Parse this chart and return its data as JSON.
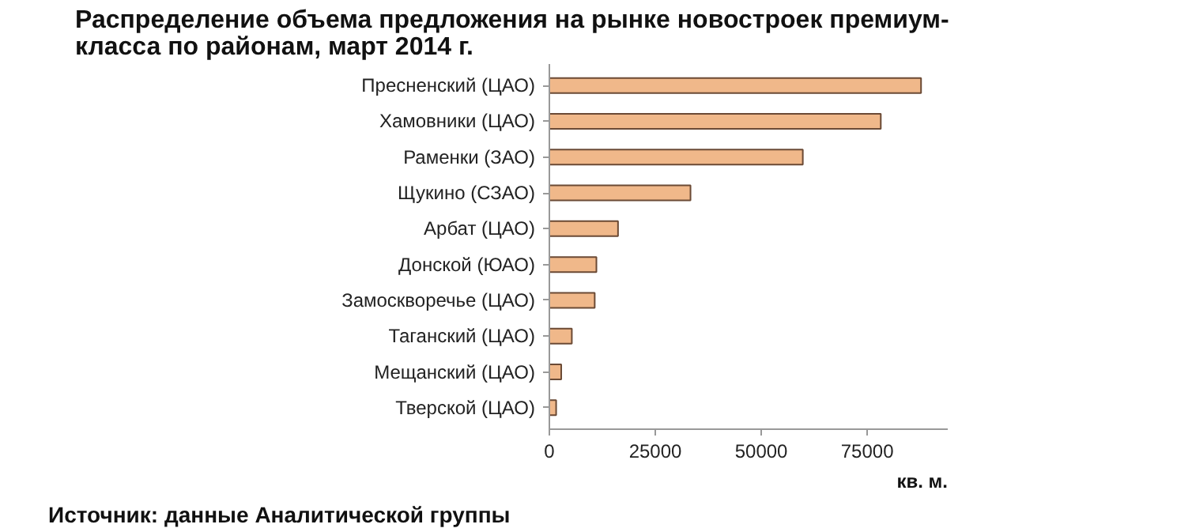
{
  "chart_data": {
    "type": "bar",
    "orientation": "horizontal",
    "title": "Распределение объема предложения на рынке новостроек премиум-класса по районам, март 2014 г.",
    "categories": [
      "Пресненский (ЦАО)",
      "Хамовники (ЦАО)",
      "Раменки (ЗАО)",
      "Щукино (СЗАО)",
      "Арбат (ЦАО)",
      "Донской (ЮАО)",
      "Замоскворечье (ЦАО)",
      "Таганский (ЦАО)",
      "Мещанский (ЦАО)",
      "Тверской (ЦАО)"
    ],
    "values": [
      87700,
      78200,
      59800,
      33300,
      16200,
      11100,
      10700,
      5300,
      2800,
      1600
    ],
    "color": "#f0b88a",
    "xlim": [
      0,
      94000
    ],
    "xticks": [
      0,
      25000,
      50000,
      75000
    ],
    "xlabel": "кв. м.",
    "grid": false,
    "annotations": [
      "Источник: данные Аналитической группы"
    ]
  }
}
